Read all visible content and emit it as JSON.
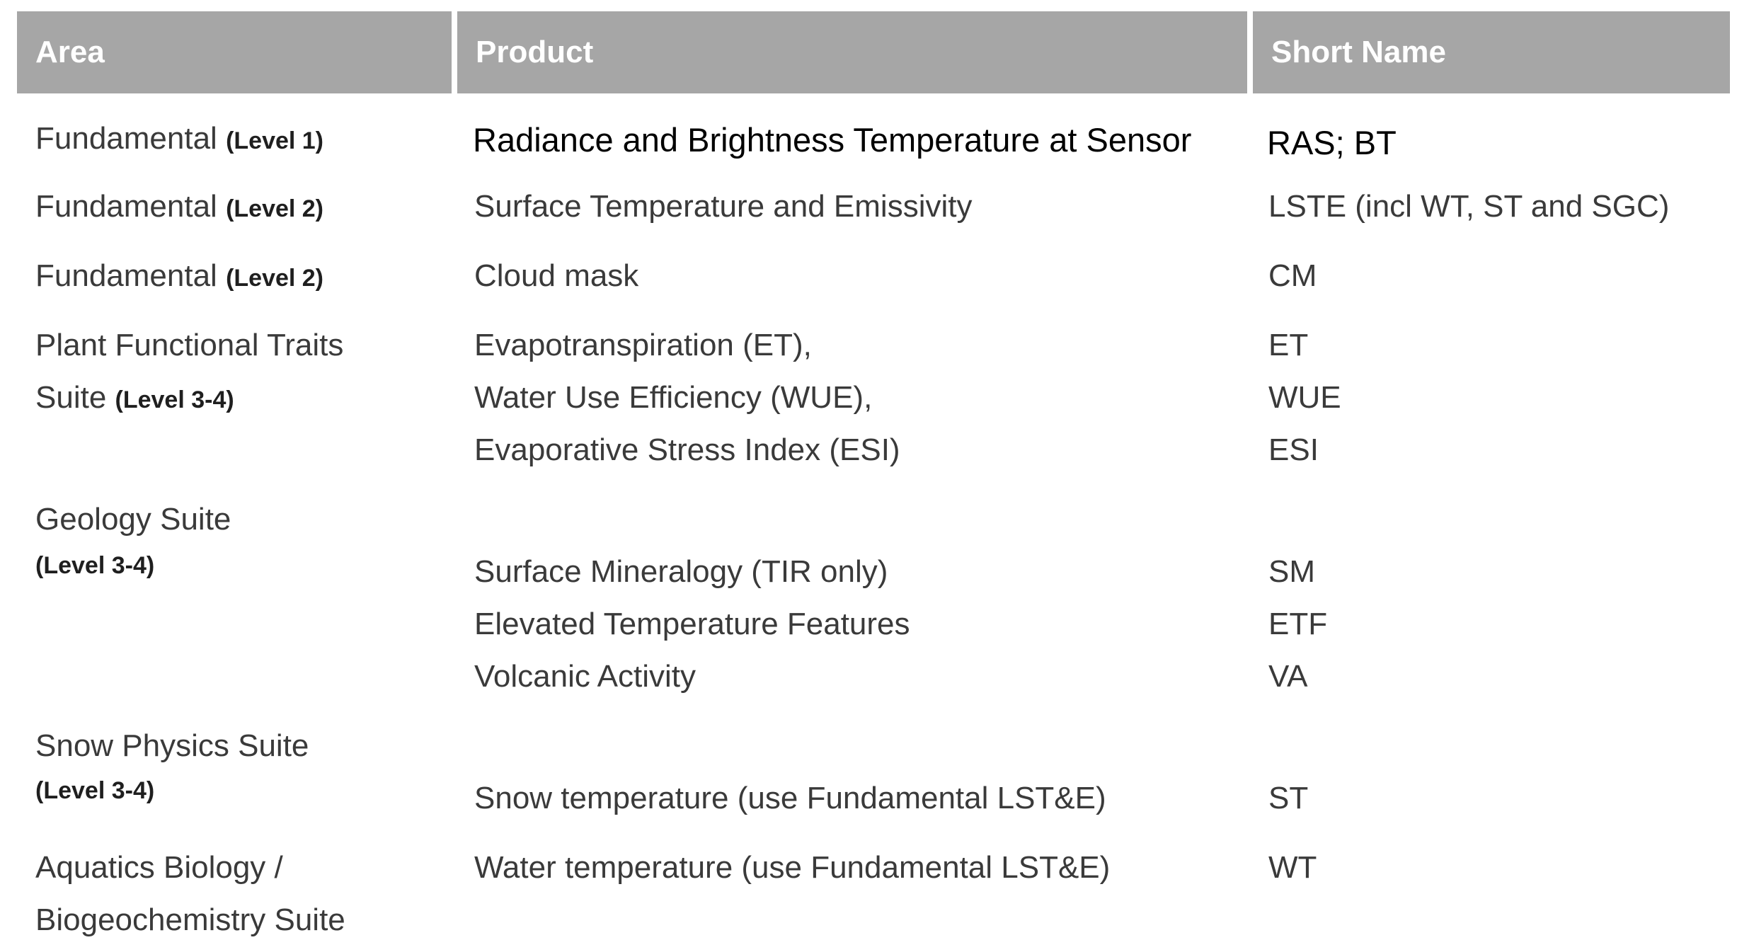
{
  "header": {
    "area": "Area",
    "product": "Product",
    "short_name": "Short Name"
  },
  "rows": [
    {
      "area_lines": [
        {
          "text": "Fundamental ",
          "level": "(Level 1)"
        }
      ],
      "products": [
        "Radiance and Brightness Temperature at Sensor"
      ],
      "short_names": [
        "RAS; BT"
      ]
    },
    {
      "area_lines": [
        {
          "text": "Fundamental ",
          "level": "(Level 2)"
        }
      ],
      "products": [
        "Surface Temperature and Emissivity"
      ],
      "short_names": [
        "LSTE (incl WT, ST and SGC)"
      ]
    },
    {
      "area_lines": [
        {
          "text": "Fundamental ",
          "level": "(Level 2)"
        }
      ],
      "products": [
        "Cloud mask"
      ],
      "short_names": [
        "CM"
      ]
    },
    {
      "area_lines": [
        {
          "text": "Plant Functional Traits",
          "level": ""
        },
        {
          "text": "Suite ",
          "level": "(Level 3-4)"
        }
      ],
      "products": [
        "Evapotranspiration (ET),",
        "Water Use Efficiency (WUE),",
        "Evaporative Stress Index (ESI)"
      ],
      "short_names": [
        "ET",
        "WUE",
        "ESI"
      ]
    },
    {
      "area_lines": [
        {
          "text": "Geology Suite",
          "level": ""
        },
        {
          "text": "",
          "level": "(Level 3-4)"
        }
      ],
      "products": [
        "Surface Mineralogy (TIR only)",
        "Elevated Temperature Features",
        "Volcanic Activity"
      ],
      "short_names": [
        "SM",
        "ETF",
        "VA"
      ]
    },
    {
      "area_lines": [
        {
          "text": "Snow Physics Suite",
          "level": ""
        },
        {
          "text": "",
          "level": "(Level 3-4)"
        }
      ],
      "products": [
        "Snow temperature (use Fundamental LST&E)"
      ],
      "short_names": [
        "ST"
      ]
    },
    {
      "area_lines": [
        {
          "text": "Aquatics Biology /",
          "level": ""
        },
        {
          "text": "Biogeochemistry Suite",
          "level": ""
        }
      ],
      "products": [
        "Water temperature (use Fundamental LST&E)"
      ],
      "short_names": [
        "WT"
      ]
    }
  ],
  "colors": {
    "header_bg": "#a6a6a6",
    "header_text": "#ffffff",
    "body_text": "#3a3a3a"
  }
}
